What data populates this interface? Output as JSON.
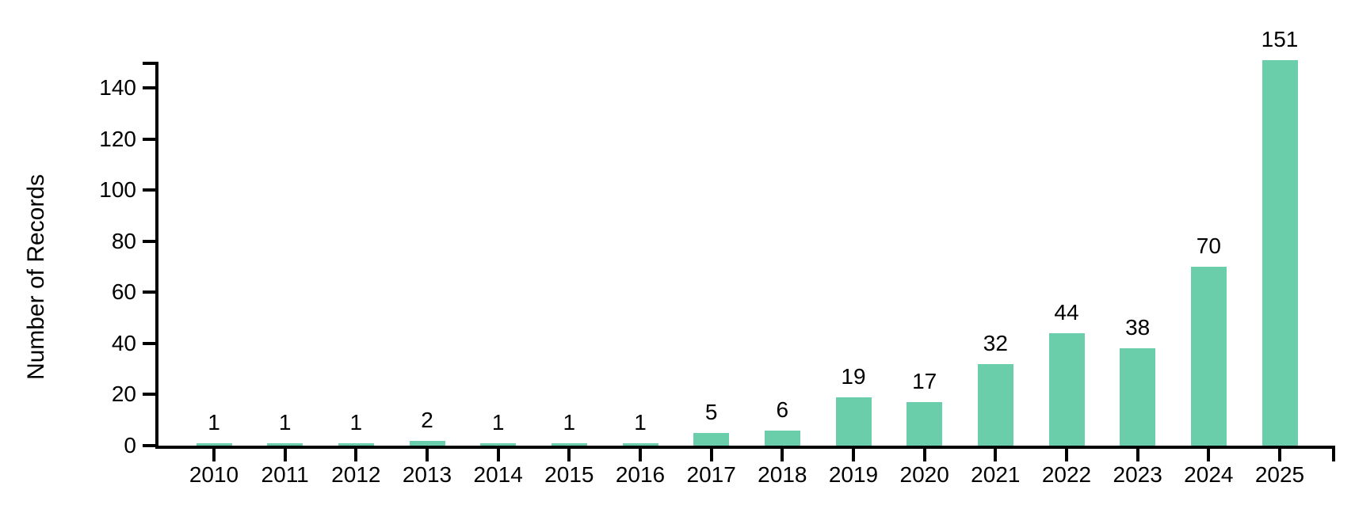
{
  "chart_data": {
    "type": "bar",
    "title": "",
    "xlabel": "",
    "ylabel": "Number of Records",
    "categories": [
      "2010",
      "2011",
      "2012",
      "2013",
      "2014",
      "2015",
      "2016",
      "2017",
      "2018",
      "2019",
      "2020",
      "2021",
      "2022",
      "2023",
      "2024",
      "2025"
    ],
    "values": [
      1,
      1,
      1,
      2,
      1,
      1,
      1,
      5,
      6,
      19,
      17,
      32,
      44,
      38,
      70,
      151
    ],
    "yticks": [
      0,
      20,
      40,
      60,
      80,
      100,
      120,
      140
    ],
    "ylim": [
      0,
      150
    ],
    "grid": false,
    "legend": "none",
    "value_labels": true,
    "bar_color": "#6aceab",
    "axis_color": "#000000",
    "text_color": "#000000",
    "background_color": "#ffffff"
  }
}
